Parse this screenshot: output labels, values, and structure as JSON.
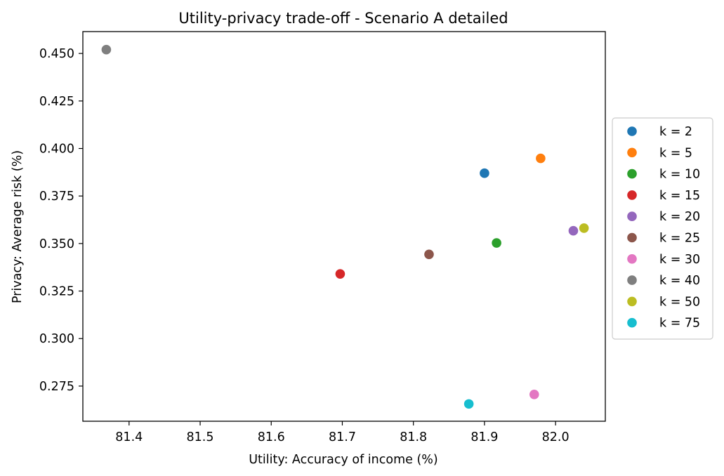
{
  "chart_data": {
    "type": "scatter",
    "title": "Utility-privacy trade-off - Scenario A detailed",
    "xlabel": "Utility: Accuracy of income (%)",
    "ylabel": "Privacy: Average risk (%)",
    "xlim": [
      81.335,
      82.07
    ],
    "ylim": [
      0.2565,
      0.4615
    ],
    "xticks": [
      81.4,
      81.5,
      81.6,
      81.7,
      81.8,
      81.9,
      82.0
    ],
    "xtick_labels": [
      "81.4",
      "81.5",
      "81.6",
      "81.7",
      "81.8",
      "81.9",
      "82.0"
    ],
    "yticks": [
      0.275,
      0.3,
      0.325,
      0.35,
      0.375,
      0.4,
      0.425,
      0.45
    ],
    "ytick_labels": [
      "0.275",
      "0.300",
      "0.325",
      "0.350",
      "0.375",
      "0.400",
      "0.425",
      "0.450"
    ],
    "grid": false,
    "legend_position": "center-right outside",
    "series": [
      {
        "name": "k = 2",
        "color": "#1f77b4",
        "x": 81.9,
        "y": 0.387
      },
      {
        "name": "k = 5",
        "color": "#ff7f0e",
        "x": 81.979,
        "y": 0.3948
      },
      {
        "name": "k = 10",
        "color": "#2ca02c",
        "x": 81.917,
        "y": 0.3503
      },
      {
        "name": "k = 15",
        "color": "#d62728",
        "x": 81.697,
        "y": 0.334
      },
      {
        "name": "k = 20",
        "color": "#9467bd",
        "x": 82.025,
        "y": 0.3567
      },
      {
        "name": "k = 25",
        "color": "#8c564b",
        "x": 81.822,
        "y": 0.3443
      },
      {
        "name": "k = 30",
        "color": "#e377c2",
        "x": 81.97,
        "y": 0.2706
      },
      {
        "name": "k = 40",
        "color": "#7f7f7f",
        "x": 81.368,
        "y": 0.452
      },
      {
        "name": "k = 50",
        "color": "#bcbd22",
        "x": 82.04,
        "y": 0.3581
      },
      {
        "name": "k = 75",
        "color": "#17becf",
        "x": 81.878,
        "y": 0.2656
      }
    ]
  }
}
